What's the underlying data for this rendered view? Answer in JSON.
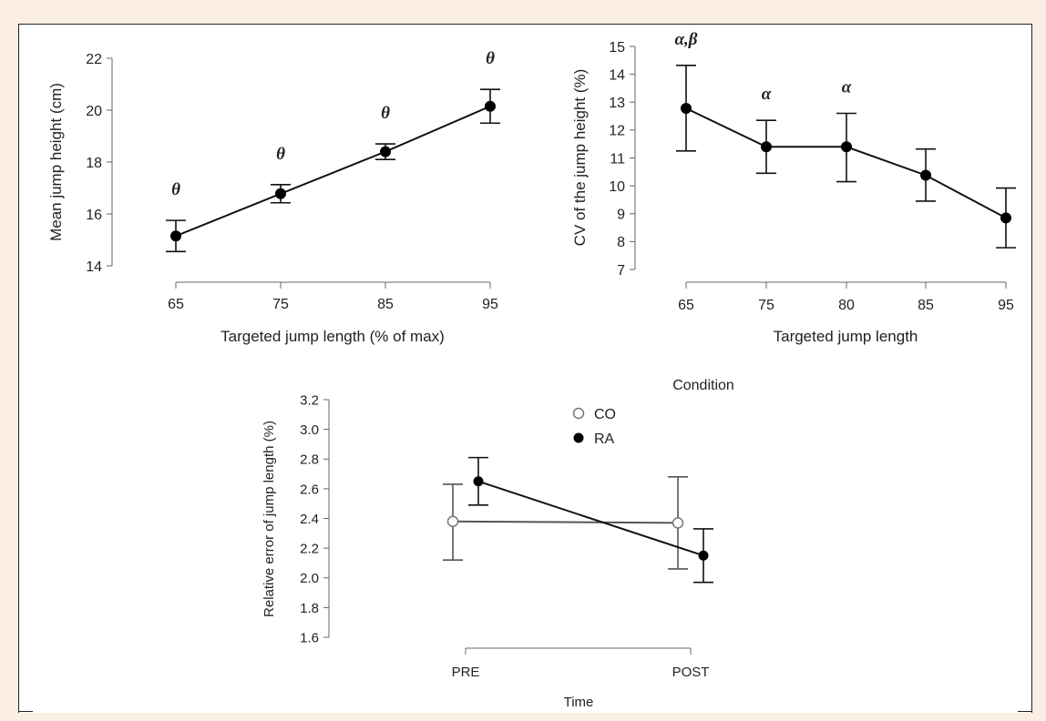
{
  "chart_data": [
    {
      "type": "line",
      "title": "",
      "xlabel": "Targeted jump length (% of max)",
      "ylabel": "Mean jump height (cm)",
      "categories": [
        "65",
        "75",
        "85",
        "95"
      ],
      "ylim": [
        14,
        22
      ],
      "yticks": [
        14,
        16,
        18,
        20,
        22
      ],
      "grid": false,
      "series": [
        {
          "values": [
            15.15,
            16.78,
            18.4,
            20.15
          ],
          "error_low": [
            14.55,
            16.43,
            18.1,
            19.5
          ],
          "error_high": [
            15.75,
            17.13,
            18.7,
            20.8
          ],
          "marker": "filled-circle",
          "color": "#111111"
        }
      ],
      "annotations": [
        "θ",
        "θ",
        "θ",
        "θ"
      ]
    },
    {
      "type": "line",
      "title": "",
      "xlabel": "Targeted jump length",
      "ylabel": "CV of the jump height (%)",
      "categories": [
        "65",
        "75",
        "80",
        "85",
        "95"
      ],
      "ylim": [
        7,
        15
      ],
      "yticks": [
        7,
        8,
        9,
        10,
        11,
        12,
        13,
        14,
        15
      ],
      "grid": false,
      "series": [
        {
          "values": [
            12.78,
            11.4,
            11.4,
            10.38,
            8.85
          ],
          "error_low": [
            11.25,
            10.45,
            10.15,
            9.45,
            7.78
          ],
          "error_high": [
            14.32,
            12.35,
            12.6,
            11.32,
            9.92
          ],
          "marker": "filled-circle",
          "color": "#111111"
        }
      ],
      "annotations": [
        "α,β",
        "α",
        "α",
        "",
        ""
      ]
    },
    {
      "type": "line",
      "title": "",
      "xlabel": "Time",
      "ylabel": "Relative error of jump length (%)",
      "categories": [
        "PRE",
        "POST"
      ],
      "ylim": [
        1.6,
        3.2
      ],
      "yticks": [
        "1.6",
        "1.8",
        "2.0",
        "2.2",
        "2.4",
        "2.6",
        "2.8",
        "3.0",
        "3.2"
      ],
      "grid": false,
      "legend_title": "Condition",
      "legend_position": "top",
      "series": [
        {
          "name": "CO",
          "values": [
            2.38,
            2.37
          ],
          "error_low": [
            2.12,
            2.06
          ],
          "error_high": [
            2.63,
            2.68
          ],
          "marker": "open-circle",
          "color": "#555555"
        },
        {
          "name": "RA",
          "values": [
            2.65,
            2.15
          ],
          "error_low": [
            2.49,
            1.97
          ],
          "error_high": [
            2.81,
            2.33
          ],
          "marker": "filled-circle",
          "color": "#111111"
        }
      ]
    }
  ]
}
